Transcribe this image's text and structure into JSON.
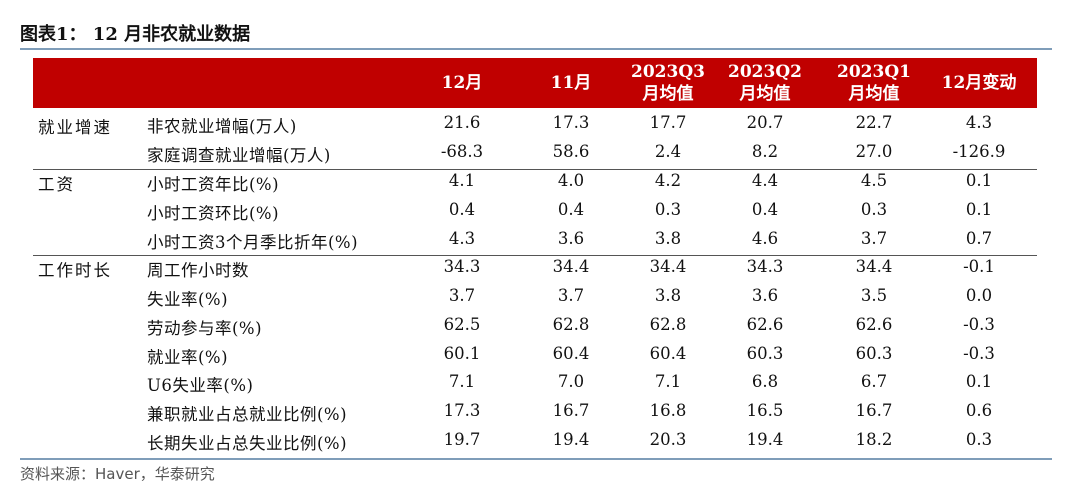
{
  "title": "图表1：  12 月非农就业数据",
  "headers": [
    {
      "line1": "12月",
      "line2": ""
    },
    {
      "line1": "11月",
      "line2": ""
    },
    {
      "line1": "2023Q3",
      "line2": "月均值"
    },
    {
      "line1": "2023Q2",
      "line2": "月均值"
    },
    {
      "line1": "2023Q1",
      "line2": "月均值"
    },
    {
      "line1": "12月变动",
      "line2": ""
    }
  ],
  "categories": [
    "就业增速",
    "工资",
    "工作时长"
  ],
  "rows": [
    {
      "label": "非农就业增幅(万人)",
      "values": [
        "21.6",
        "17.3",
        "17.7",
        "20.7",
        "22.7",
        "4.3"
      ]
    },
    {
      "label": "家庭调查就业增幅(万人)",
      "values": [
        "-68.3",
        "58.6",
        "2.4",
        "8.2",
        "27.0",
        "-126.9"
      ]
    },
    {
      "label": "小时工资年比(%)",
      "values": [
        "4.1",
        "4.0",
        "4.2",
        "4.4",
        "4.5",
        "0.1"
      ]
    },
    {
      "label": "小时工资环比(%)",
      "values": [
        "0.4",
        "0.4",
        "0.3",
        "0.4",
        "0.3",
        "0.1"
      ]
    },
    {
      "label": "小时工资3个月季比折年(%)",
      "values": [
        "4.3",
        "3.6",
        "3.8",
        "4.6",
        "3.7",
        "0.7"
      ]
    },
    {
      "label": "周工作小时数",
      "values": [
        "34.3",
        "34.4",
        "34.4",
        "34.3",
        "34.4",
        "-0.1"
      ]
    },
    {
      "label": "失业率(%)",
      "values": [
        "3.7",
        "3.7",
        "3.8",
        "3.6",
        "3.5",
        "0.0"
      ]
    },
    {
      "label": "劳动参与率(%)",
      "values": [
        "62.5",
        "62.8",
        "62.8",
        "62.6",
        "62.6",
        "-0.3"
      ]
    },
    {
      "label": "就业率(%)",
      "values": [
        "60.1",
        "60.4",
        "60.4",
        "60.3",
        "60.3",
        "-0.3"
      ]
    },
    {
      "label": "U6失业率(%)",
      "values": [
        "7.1",
        "7.0",
        "7.1",
        "6.8",
        "6.7",
        "0.1"
      ]
    },
    {
      "label": "兼职就业占总就业比例(%)",
      "values": [
        "17.3",
        "16.7",
        "16.8",
        "16.5",
        "16.7",
        "0.6"
      ]
    },
    {
      "label": "长期失业占总失业比例(%)",
      "values": [
        "19.7",
        "19.4",
        "20.3",
        "19.4",
        "18.2",
        "0.3"
      ]
    }
  ],
  "source": "资料来源：Haver，华泰研究",
  "colors": {
    "header_bg": "#c00000",
    "header_text": "#ffffff",
    "rule": "#7f9db9"
  }
}
